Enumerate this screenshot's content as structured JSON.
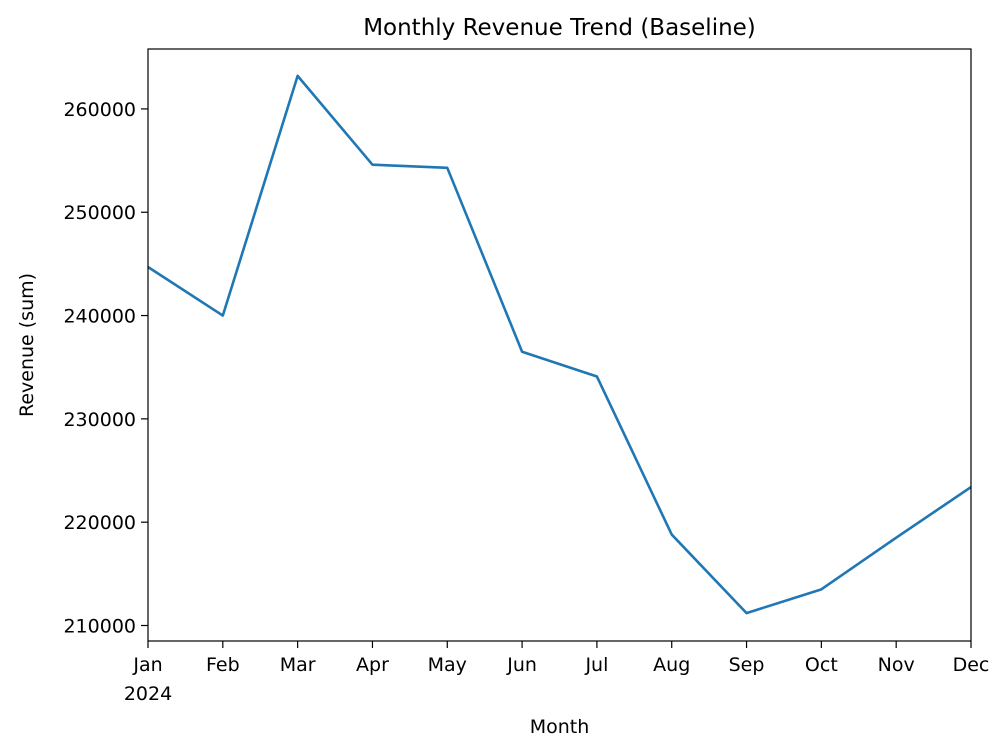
{
  "chart_data": {
    "type": "line",
    "title": "Monthly Revenue Trend (Baseline)",
    "xlabel": "Month",
    "ylabel": "Revenue (sum)",
    "x": [
      "2024-01",
      "2024-02",
      "2024-03",
      "2024-04",
      "2024-05",
      "2024-06",
      "2024-07",
      "2024-08",
      "2024-09",
      "2024-10",
      "2024-11",
      "2024-12"
    ],
    "x_tick_labels": [
      "Jan",
      "Feb",
      "Mar",
      "Apr",
      "May",
      "Jun",
      "Jul",
      "Aug",
      "Sep",
      "Oct",
      "Nov",
      "Dec"
    ],
    "x_tick_year_label": "2024",
    "series": [
      {
        "values": [
          244700,
          240000,
          263200,
          254600,
          254300,
          236500,
          234100,
          218800,
          211200,
          213500,
          218500,
          223400
        ],
        "color": "#1f77b4"
      }
    ],
    "ylim": [
      208500,
      265800
    ],
    "y_ticks": [
      210000,
      220000,
      230000,
      240000,
      250000,
      260000
    ],
    "y_tick_labels": [
      "210000",
      "220000",
      "230000",
      "240000",
      "250000",
      "260000"
    ],
    "grid": false,
    "legend": "none"
  }
}
